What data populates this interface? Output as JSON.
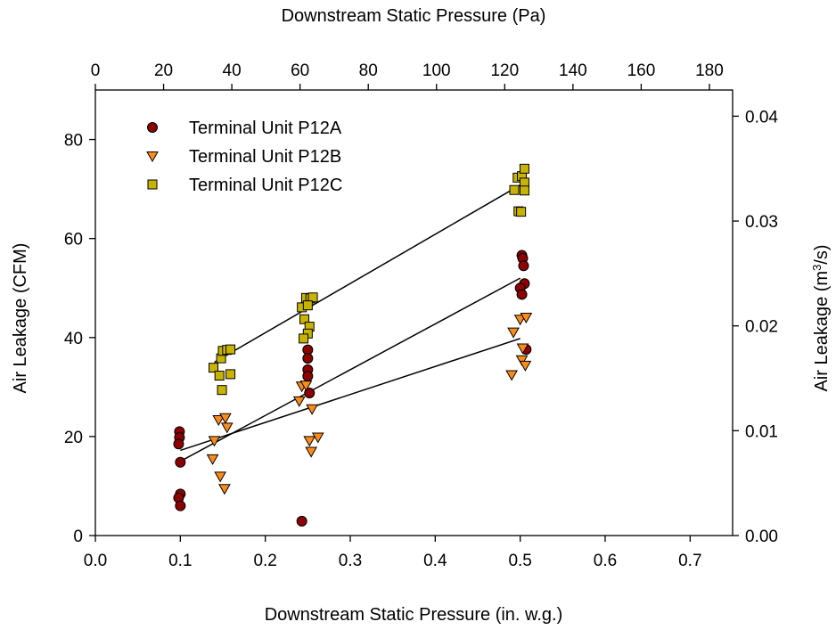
{
  "chart_data": {
    "type": "scatter",
    "xlabel": "Downstream Static Pressure (in. w.g.)",
    "x2label": "Downstream Static Pressure (Pa)",
    "ylabel": "Air Leakage (CFM)",
    "y2label": "Air Leakage (m³/s)",
    "xlim": [
      0.0,
      0.75
    ],
    "x2lim": [
      0,
      186.8
    ],
    "ylim": [
      0,
      90
    ],
    "y2lim": [
      0,
      0.0425
    ],
    "x_ticks": [
      "0.0",
      "0.1",
      "0.2",
      "0.3",
      "0.4",
      "0.5",
      "0.6",
      "0.7"
    ],
    "x2_ticks": [
      "0",
      "20",
      "40",
      "60",
      "80",
      "100",
      "120",
      "140",
      "160",
      "180"
    ],
    "y_ticks": [
      "0",
      "20",
      "40",
      "60",
      "80"
    ],
    "y2_ticks": [
      "0.00",
      "0.01",
      "0.02",
      "0.03",
      "0.04"
    ],
    "grid": false,
    "legend_position": "top-left",
    "series": [
      {
        "name": "Terminal Unit P12A",
        "marker": "circle",
        "color": "#8b0000",
        "points": [
          [
            0.099,
            21.0
          ],
          [
            0.099,
            19.8
          ],
          [
            0.098,
            18.5
          ],
          [
            0.1,
            14.8
          ],
          [
            0.1,
            8.4
          ],
          [
            0.098,
            7.6
          ],
          [
            0.1,
            6.0
          ],
          [
            0.25,
            37.5
          ],
          [
            0.25,
            35.8
          ],
          [
            0.25,
            33.5
          ],
          [
            0.25,
            32.2
          ],
          [
            0.252,
            28.8
          ],
          [
            0.243,
            2.9
          ],
          [
            0.502,
            56.6
          ],
          [
            0.503,
            56.0
          ],
          [
            0.504,
            54.5
          ],
          [
            0.505,
            50.9
          ],
          [
            0.5,
            50.0
          ],
          [
            0.502,
            48.7
          ],
          [
            0.507,
            37.6
          ]
        ],
        "fit": [
          [
            0.1,
            15.0
          ],
          [
            0.5,
            52.0
          ]
        ]
      },
      {
        "name": "Terminal Unit P12B",
        "marker": "triangle-down",
        "color": "#ff8c1a",
        "points": [
          [
            0.14,
            19.2
          ],
          [
            0.138,
            15.5
          ],
          [
            0.147,
            12.0
          ],
          [
            0.152,
            9.5
          ],
          [
            0.145,
            23.4
          ],
          [
            0.153,
            23.8
          ],
          [
            0.155,
            21.9
          ],
          [
            0.243,
            30.2
          ],
          [
            0.248,
            30.4
          ],
          [
            0.24,
            27.2
          ],
          [
            0.255,
            25.6
          ],
          [
            0.252,
            19.2
          ],
          [
            0.262,
            19.9
          ],
          [
            0.254,
            17.0
          ],
          [
            0.492,
            41.1
          ],
          [
            0.5,
            43.7
          ],
          [
            0.507,
            44.1
          ],
          [
            0.503,
            37.9
          ],
          [
            0.502,
            35.5
          ],
          [
            0.506,
            34.4
          ],
          [
            0.49,
            32.5
          ]
        ],
        "fit": [
          [
            0.1,
            17.2
          ],
          [
            0.5,
            39.8
          ]
        ]
      },
      {
        "name": "Terminal Unit P12C",
        "marker": "square",
        "color": "#c8b400",
        "points": [
          [
            0.139,
            33.9
          ],
          [
            0.148,
            35.8
          ],
          [
            0.15,
            37.3
          ],
          [
            0.155,
            37.5
          ],
          [
            0.159,
            37.6
          ],
          [
            0.146,
            32.3
          ],
          [
            0.159,
            32.6
          ],
          [
            0.149,
            29.4
          ],
          [
            0.248,
            48.0
          ],
          [
            0.253,
            47.9
          ],
          [
            0.256,
            48.1
          ],
          [
            0.243,
            46.1
          ],
          [
            0.25,
            46.5
          ],
          [
            0.246,
            43.7
          ],
          [
            0.252,
            42.2
          ],
          [
            0.25,
            40.8
          ],
          [
            0.245,
            39.8
          ],
          [
            0.493,
            69.8
          ],
          [
            0.497,
            72.3
          ],
          [
            0.502,
            72.6
          ],
          [
            0.505,
            74.1
          ],
          [
            0.505,
            71.3
          ],
          [
            0.505,
            69.7
          ],
          [
            0.498,
            65.5
          ],
          [
            0.501,
            65.4
          ]
        ],
        "fit": [
          [
            0.14,
            35.0
          ],
          [
            0.5,
            70.8
          ]
        ]
      }
    ]
  }
}
